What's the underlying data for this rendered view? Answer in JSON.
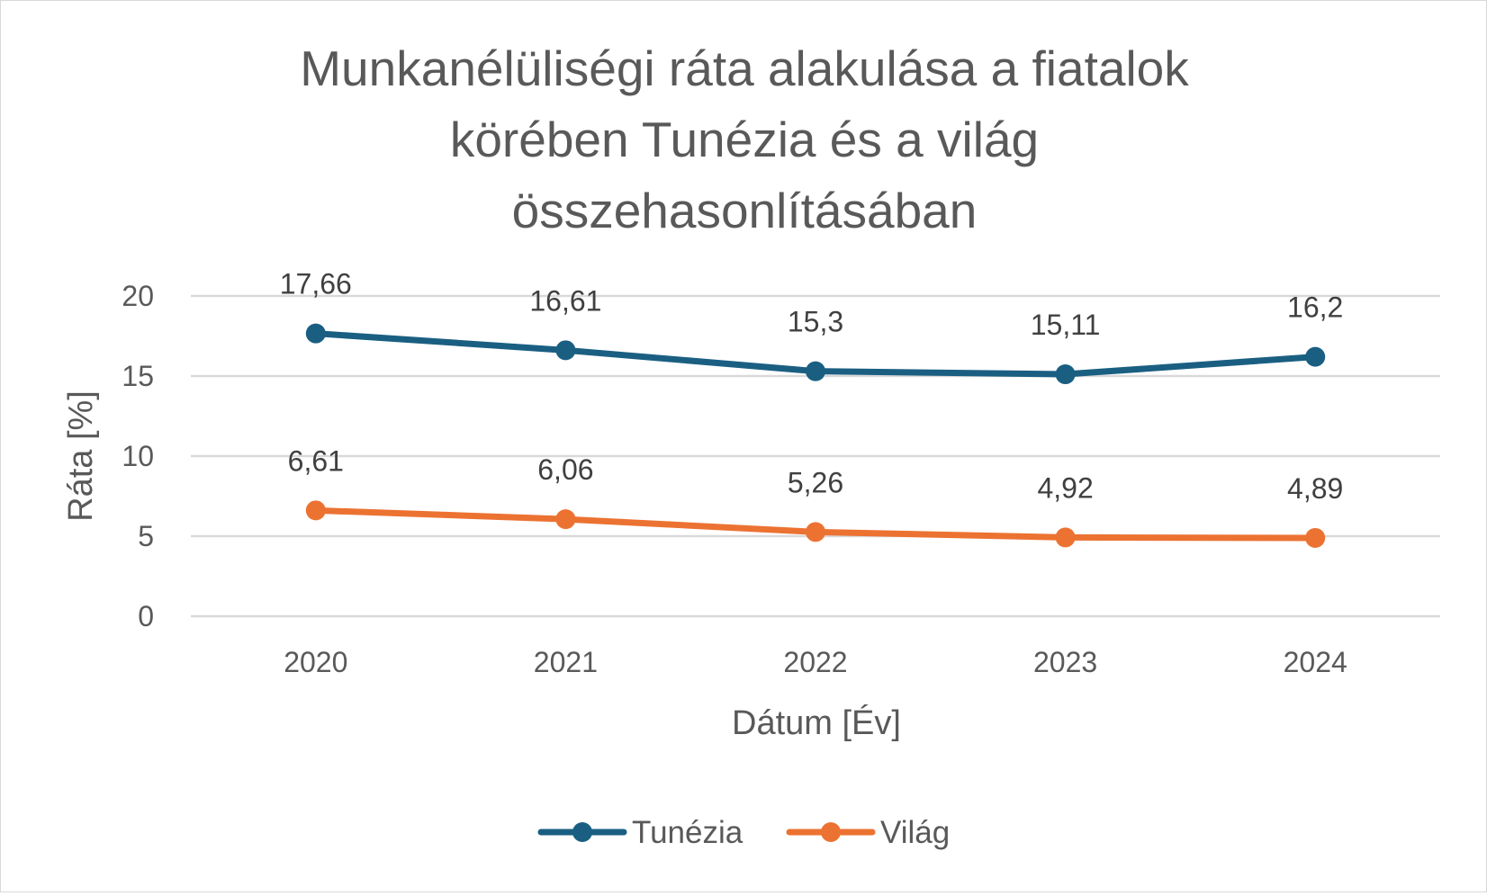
{
  "chart_data": {
    "type": "line",
    "title_lines": [
      "Munkanélüliségi ráta alakulása a fiatalok",
      "körében Tunézia és a világ",
      "összehasonlításában"
    ],
    "xlabel": "Dátum [Év]",
    "ylabel": "Ráta [%]",
    "categories": [
      "2020",
      "2021",
      "2022",
      "2023",
      "2024"
    ],
    "ylim": [
      0,
      20
    ],
    "yticks": [
      "0",
      "5",
      "10",
      "15",
      "20"
    ],
    "grid": true,
    "legend_position": "bottom",
    "series": [
      {
        "name": "Tunézia",
        "color": "#1a5f82",
        "values": [
          17.66,
          16.61,
          15.3,
          15.11,
          16.2
        ],
        "labels": [
          "17,66",
          "16,61",
          "15,3",
          "15,11",
          "16,2"
        ]
      },
      {
        "name": "Világ",
        "color": "#ec7232",
        "values": [
          6.61,
          6.06,
          5.26,
          4.92,
          4.89
        ],
        "labels": [
          "6,61",
          "6,06",
          "5,26",
          "4,92",
          "4,89"
        ]
      }
    ]
  }
}
